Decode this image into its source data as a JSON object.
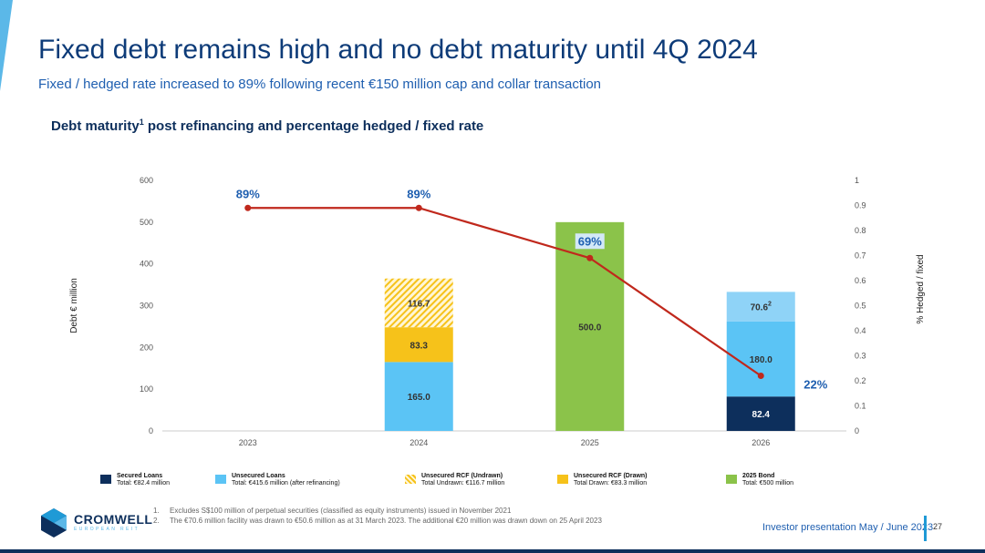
{
  "slide": {
    "title": "Fixed debt remains high and no debt maturity until 4Q 2024",
    "subtitle": "Fixed / hedged rate increased to 89% following recent €150 million cap and collar transaction",
    "chart_heading": "Debt maturity",
    "chart_heading_sup": "1",
    "chart_heading_rest": " post refinancing and percentage hedged / fixed rate",
    "footer_caption": "Investor presentation May / June 2023",
    "page_number": "27"
  },
  "logo": {
    "name": "CROMWELL",
    "sub": "EUROPEAN REIT"
  },
  "footnotes": [
    {
      "num": "1.",
      "text": "Excludes S$100 million of perpetual securities (classified as equity instruments) issued in November 2021"
    },
    {
      "num": "2.",
      "text": "The €70.6 million facility was drawn to €50.6 million as at 31 March 2023. The additional €20 million was drawn down on 25 April 2023"
    }
  ],
  "legend": [
    {
      "name": "Secured Loans",
      "total": "Total: €82.4 million",
      "color": "#0d2f5c",
      "pattern": false
    },
    {
      "name": "Unsecured Loans",
      "total": "Total: €415.6 million (after refinancing)",
      "color": "#5bc4f5",
      "pattern": false
    },
    {
      "name": "Unsecured RCF (Undrawn)",
      "total": "Total Undrawn: €116.7 million",
      "color": "#f6c21a",
      "pattern": true
    },
    {
      "name": "Unsecured RCF (Drawn)",
      "total": "Total Drawn: €83.3 million",
      "color": "#f6c21a",
      "pattern": false
    },
    {
      "name": "2025 Bond",
      "total": "Total: €500 million",
      "color": "#8bc34a",
      "pattern": false
    }
  ],
  "chart_data": {
    "type": "bar",
    "stacked": true,
    "categories": [
      "2023",
      "2024",
      "2025",
      "2026"
    ],
    "ylabel": "Debt € million",
    "y2label": "% Hedged / fixed",
    "ylim": [
      0,
      600
    ],
    "yticks": [
      "0",
      "100",
      "200",
      "300",
      "400",
      "500",
      "600"
    ],
    "y2lim": [
      0,
      1
    ],
    "y2ticks": [
      "0",
      "0.1",
      "0.2",
      "0.3",
      "0.4",
      "0.5",
      "0.6",
      "0.7",
      "0.8",
      "0.9",
      "1"
    ],
    "series": [
      {
        "name": "Secured Loans",
        "color": "#0d2f5c",
        "labelColor": "#ffffff",
        "values": [
          0,
          0,
          0,
          82.4
        ],
        "labels": [
          "",
          "",
          "",
          "82.4"
        ]
      },
      {
        "name": "Unsecured Loans",
        "color": "#5bc4f5",
        "labelColor": "#333333",
        "values": [
          0,
          165.0,
          0,
          180.0
        ],
        "labels": [
          "",
          "165.0",
          "",
          "180.0"
        ]
      },
      {
        "name": "Unsecured RCF (Drawn)",
        "color": "#f6c21a",
        "labelColor": "#333333",
        "values": [
          0,
          83.3,
          0,
          0
        ],
        "labels": [
          "",
          "83.3",
          "",
          ""
        ]
      },
      {
        "name": "Unsecured RCF (Undrawn)",
        "color": "#f6c21a",
        "pattern": true,
        "labelColor": "#333333",
        "values": [
          0,
          116.7,
          0,
          0
        ],
        "labels": [
          "",
          "116.7",
          "",
          ""
        ]
      },
      {
        "name": "2025 Bond",
        "color": "#8bc34a",
        "labelColor": "#333333",
        "values": [
          0,
          0,
          500.0,
          0
        ],
        "labels": [
          "",
          "",
          "500.0",
          ""
        ]
      },
      {
        "name": "Facility",
        "color": "#8fd3f7",
        "labelColor": "#333333",
        "values": [
          0,
          0,
          0,
          70.6
        ],
        "labels": [
          "",
          "",
          "",
          "70.6"
        ],
        "labelSup": "2"
      }
    ],
    "line": {
      "color": "#c0281c",
      "values": [
        0.89,
        0.89,
        0.69,
        0.22
      ],
      "labels": [
        "89%",
        "89%",
        "69%",
        "22%"
      ]
    },
    "grid": false
  }
}
